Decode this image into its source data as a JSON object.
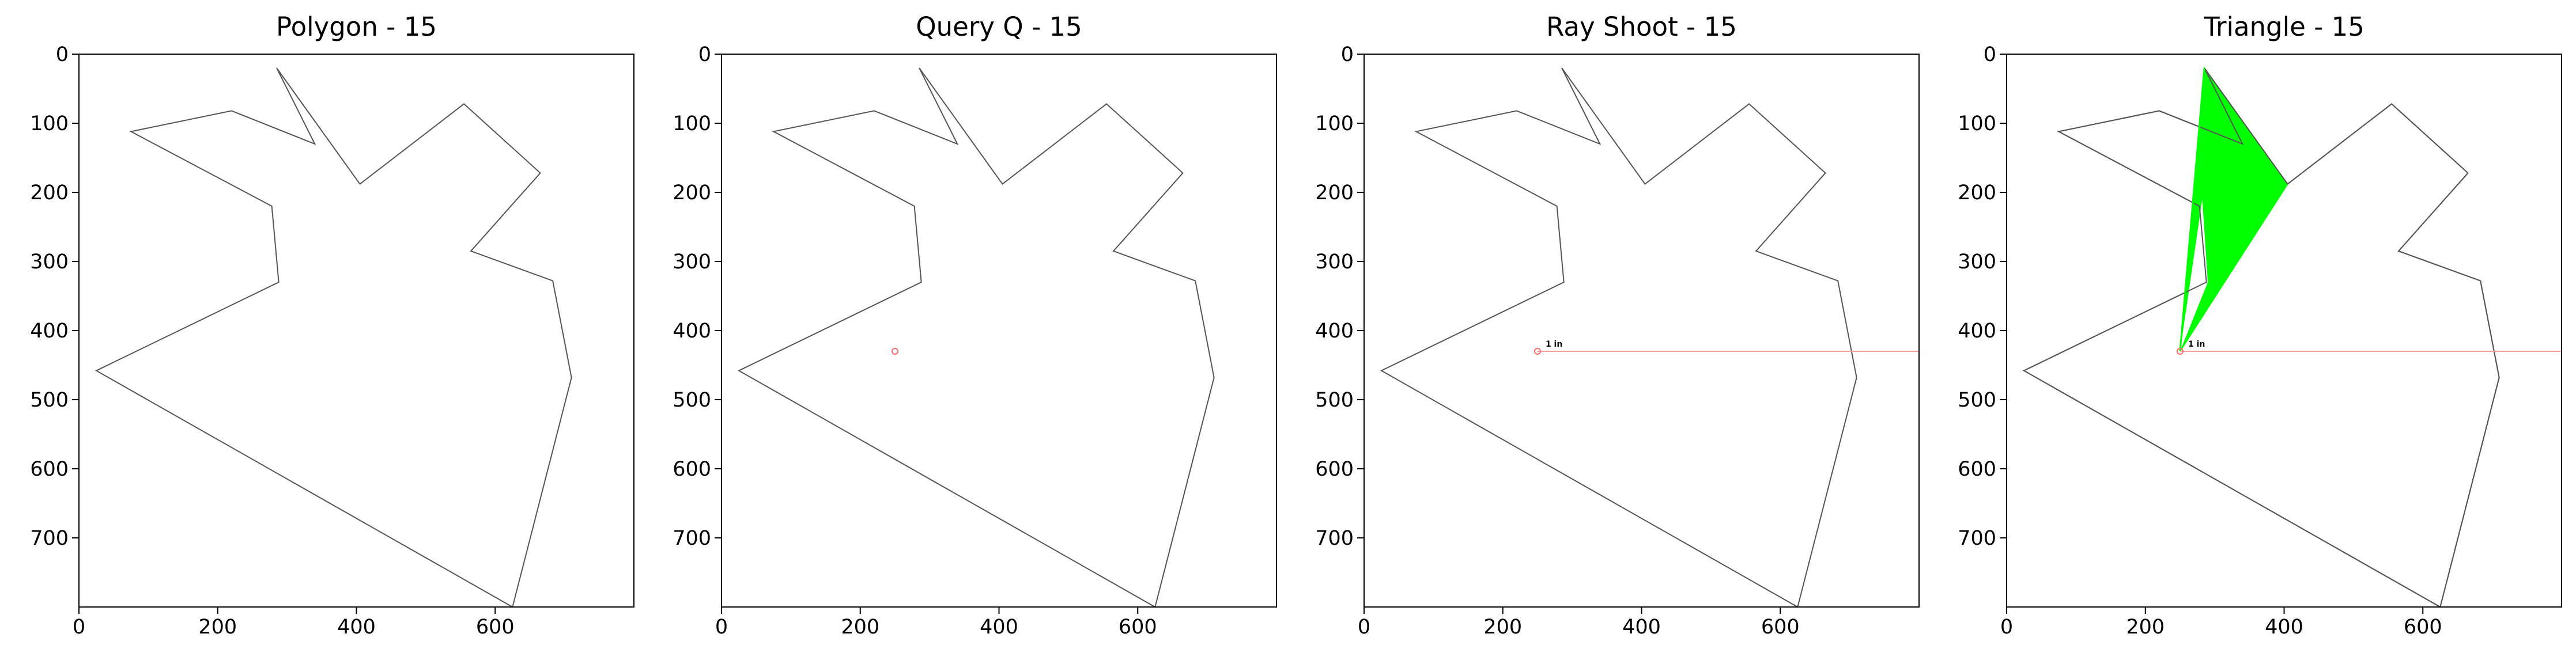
{
  "chart_data": [
    {
      "type": "image-plot",
      "title": "Polygon - 15",
      "xlim": [
        0,
        800
      ],
      "ylim": [
        800,
        0
      ],
      "xticks": [
        0,
        200,
        400,
        600
      ],
      "yticks": [
        0,
        100,
        200,
        300,
        400,
        500,
        600,
        700
      ],
      "grid": false,
      "layers": [
        "polygon"
      ]
    },
    {
      "type": "image-plot",
      "title": "Query Q - 15",
      "xlim": [
        0,
        800
      ],
      "ylim": [
        800,
        0
      ],
      "xticks": [
        0,
        200,
        400,
        600
      ],
      "yticks": [
        0,
        100,
        200,
        300,
        400,
        500,
        600,
        700
      ],
      "grid": false,
      "layers": [
        "polygon",
        "query"
      ]
    },
    {
      "type": "image-plot",
      "title": "Ray Shoot - 15",
      "xlim": [
        0,
        800
      ],
      "ylim": [
        800,
        0
      ],
      "xticks": [
        0,
        200,
        400,
        600
      ],
      "yticks": [
        0,
        100,
        200,
        300,
        400,
        500,
        600,
        700
      ],
      "grid": false,
      "layers": [
        "polygon",
        "query",
        "ray"
      ]
    },
    {
      "type": "image-plot",
      "title": "Triangle - 15",
      "xlim": [
        0,
        800
      ],
      "ylim": [
        800,
        0
      ],
      "xticks": [
        0,
        200,
        400,
        600
      ],
      "yticks": [
        0,
        100,
        200,
        300,
        400,
        500,
        600,
        700
      ],
      "grid": false,
      "layers": [
        "polygon",
        "triangle",
        "query",
        "ray"
      ]
    }
  ],
  "polygon": {
    "vertices": [
      [
        285,
        20
      ],
      [
        340,
        130
      ],
      [
        220,
        82
      ],
      [
        75,
        112
      ],
      [
        278,
        220
      ],
      [
        288,
        330
      ],
      [
        25,
        458
      ],
      [
        625,
        800
      ],
      [
        710,
        468
      ],
      [
        683,
        328
      ],
      [
        565,
        285
      ],
      [
        665,
        172
      ],
      [
        555,
        72
      ],
      [
        405,
        188
      ]
    ],
    "color": "#555555"
  },
  "query": {
    "point": [
      250,
      430
    ],
    "color": "#ff6b6b",
    "label": "1 in"
  },
  "ray": {
    "from": [
      250,
      430
    ],
    "to": [
      800,
      430
    ],
    "color": "#ff9a9a"
  },
  "triangle": {
    "vertices": [
      [
        250,
        430
      ],
      [
        285,
        20
      ],
      [
        405,
        188
      ]
    ],
    "fill": "#00ff00",
    "spike": [
      [
        250,
        430
      ],
      [
        282,
        210
      ],
      [
        290,
        330
      ]
    ]
  },
  "colors": {
    "axis": "#000000",
    "background": "#ffffff"
  }
}
